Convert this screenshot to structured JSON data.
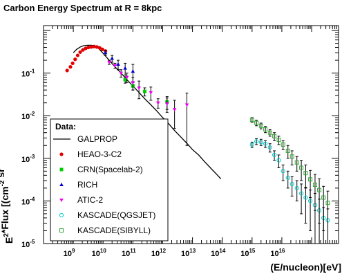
{
  "chart_data": {
    "type": "scatter",
    "title": "Carbon Energy Spectrum at R = 8kpc",
    "xlabel": "(E/nucleon)[eV]",
    "ylabel": "E^2*Flux [(cm^-2 sr^-1 s^-1 (MeV/nucleon)]",
    "xscale": "log",
    "yscale": "log",
    "xlim": [
      100000000,
      800000000000000000
    ],
    "ylim": [
      1e-05,
      1.3
    ],
    "x_ticks": [
      {
        "base": "10",
        "exp": "9",
        "value": 1000000000
      },
      {
        "base": "10",
        "exp": "10",
        "value": 10000000000
      },
      {
        "base": "10",
        "exp": "11",
        "value": 100000000000
      },
      {
        "base": "10",
        "exp": "12",
        "value": 1000000000000
      },
      {
        "base": "10",
        "exp": "13",
        "value": 10000000000000
      },
      {
        "base": "10",
        "exp": "14",
        "value": 100000000000000
      },
      {
        "base": "10",
        "exp": "15",
        "value": 1000000000000000
      },
      {
        "base": "10",
        "exp": "16",
        "value": 10000000000000000
      }
    ],
    "y_ticks": [
      {
        "base": "10",
        "exp": "-1",
        "value": 0.1
      },
      {
        "base": "10",
        "exp": "-2",
        "value": 0.01
      },
      {
        "base": "10",
        "exp": "-3",
        "value": 0.001
      },
      {
        "base": "10",
        "exp": "-4",
        "value": 0.0001
      },
      {
        "base": "10",
        "exp": "-5",
        "value": 1e-05
      }
    ],
    "legend": {
      "header": "Data:",
      "placement": "bottom-left"
    },
    "series": [
      {
        "name": "GALPROP",
        "style": "line",
        "color": "#000000",
        "points": [
          [
            1000000000.0,
            0.3
          ],
          [
            1300000000.0,
            0.36
          ],
          [
            1700000000.0,
            0.41
          ],
          [
            2200000000.0,
            0.44
          ],
          [
            3000000000.0,
            0.45
          ],
          [
            4000000000.0,
            0.45
          ],
          [
            5000000000.0,
            0.44
          ],
          [
            7000000000.0,
            0.38
          ],
          [
            10000000000.0,
            0.29
          ],
          [
            16000000000.0,
            0.2
          ],
          [
            25000000000.0,
            0.14
          ],
          [
            40000000000.0,
            0.1
          ],
          [
            63000000000.0,
            0.07
          ],
          [
            100000000000.0,
            0.05
          ],
          [
            160000000000.0,
            0.035
          ],
          [
            250000000000.0,
            0.025
          ],
          [
            400000000000.0,
            0.018
          ],
          [
            630000000000.0,
            0.013
          ],
          [
            1000000000000.0,
            0.009
          ],
          [
            1600000000000.0,
            0.0064
          ],
          [
            2500000000000.0,
            0.0045
          ],
          [
            4000000000000.0,
            0.0032
          ],
          [
            6300000000000.0,
            0.0023
          ],
          [
            10000000000000.0,
            0.0016
          ],
          [
            16000000000000.0,
            0.0012
          ],
          [
            25000000000000.0,
            0.00085
          ],
          [
            40000000000000.0,
            0.0006
          ],
          [
            63000000000000.0,
            0.00043
          ],
          [
            90000000000000.0,
            0.00033
          ]
        ]
      },
      {
        "name": "HEAO-3-C2",
        "style": "marker",
        "marker": "circle",
        "color": "#e00000",
        "points": [
          [
            620000000.0,
            0.115
          ],
          [
            800000000.0,
            0.14
          ],
          [
            950000000.0,
            0.17
          ],
          [
            1150000000.0,
            0.21
          ],
          [
            1400000000.0,
            0.26
          ],
          [
            1700000000.0,
            0.31
          ],
          [
            2100000000.0,
            0.35
          ],
          [
            2600000000.0,
            0.38
          ],
          [
            3200000000.0,
            0.4
          ],
          [
            4000000000.0,
            0.41
          ],
          [
            5000000000.0,
            0.42
          ],
          [
            6200000000.0,
            0.41
          ],
          [
            7700000000.0,
            0.39
          ],
          [
            9500000000.0,
            0.36
          ],
          [
            12000000000.0,
            0.33
          ]
        ]
      },
      {
        "name": "CRN(Spacelab-2)",
        "style": "marker",
        "marker": "square",
        "color": "#00cc00",
        "points": [
          [
            55000000000.0,
            0.07,
            0.012
          ],
          [
            100000000000.0,
            0.05,
            0.01
          ],
          [
            250000000000.0,
            0.037,
            0.008
          ],
          [
            1400000000000.0,
            0.021,
            0.007
          ]
        ]
      },
      {
        "name": "RICH",
        "style": "marker",
        "marker": "triangle-up",
        "color": "#0000cc",
        "points": [
          [
            12000000000.0,
            0.3,
            0.04
          ],
          [
            20000000000.0,
            0.22,
            0.04
          ],
          [
            32000000000.0,
            0.16,
            0.04
          ],
          [
            55000000000.0,
            0.13,
            0.04
          ],
          [
            100000000000.0,
            0.11,
            0.05
          ]
        ]
      },
      {
        "name": "ATIC-2",
        "style": "marker",
        "marker": "triangle-down",
        "color": "#ee00ee",
        "points": [
          [
            16000000000.0,
            0.18,
            0.02
          ],
          [
            25000000000.0,
            0.15,
            0.02
          ],
          [
            40000000000.0,
            0.1,
            0.02
          ],
          [
            63000000000.0,
            0.08,
            0.02
          ],
          [
            100000000000.0,
            0.06,
            0.02
          ],
          [
            160000000000.0,
            0.045,
            0.02
          ],
          [
            400000000000.0,
            0.035,
            0.012
          ],
          [
            700000000000.0,
            0.02,
            0.005
          ],
          [
            1400000000000.0,
            0.019,
            0.007
          ],
          [
            2500000000000.0,
            0.014,
            0.009
          ],
          [
            6500000000000.0,
            0.018,
            0.016
          ]
        ]
      },
      {
        "name": "KASCADE(QGSJET)",
        "style": "marker",
        "marker": "circle-open",
        "color": "#00cccc",
        "points": [
          [
            1000000000000000.0,
            0.0021,
            0.0003
          ],
          [
            1400000000000000.0,
            0.0025,
            0.0004
          ],
          [
            2000000000000000.0,
            0.0024,
            0.0004
          ],
          [
            2800000000000000.0,
            0.0022,
            0.0004
          ],
          [
            4000000000000000.0,
            0.0018,
            0.0004
          ],
          [
            5600000000000000.0,
            0.0012,
            0.0003
          ],
          [
            7900000000000000.0,
            0.0009,
            0.0003
          ],
          [
            1.1e+16,
            0.0005,
            0.0002
          ],
          [
            1.6e+16,
            0.00035,
            0.00015
          ],
          [
            2.2e+16,
            0.00025,
            0.00012
          ],
          [
            3.2e+16,
            0.0002,
            0.0001
          ],
          [
            4.5e+16,
            0.00015,
            0.0001
          ],
          [
            6.3e+16,
            0.00012,
            9e-05
          ],
          [
            9e+16,
            0.0001,
            8e-05
          ],
          [
            1.3e+17,
            8e-05,
            7e-05
          ],
          [
            1.8e+17,
            6e-05,
            5e-05
          ],
          [
            2.5e+17,
            4e-05,
            3e-05
          ],
          [
            3.5e+17,
            3.5e-05,
            3e-05
          ]
        ]
      },
      {
        "name": "KASCADE(SIBYLL)",
        "style": "marker",
        "marker": "square-open",
        "color": "#33aa33",
        "points": [
          [
            1000000000000000.0,
            0.008,
            0.001
          ],
          [
            1400000000000000.0,
            0.0068,
            0.001
          ],
          [
            2000000000000000.0,
            0.0058,
            0.0009
          ],
          [
            2800000000000000.0,
            0.0048,
            0.0008
          ],
          [
            4000000000000000.0,
            0.004,
            0.0007
          ],
          [
            5600000000000000.0,
            0.0033,
            0.0007
          ],
          [
            7900000000000000.0,
            0.0027,
            0.0006
          ],
          [
            1.1e+16,
            0.0021,
            0.0005
          ],
          [
            1.6e+16,
            0.0015,
            0.0005
          ],
          [
            2.2e+16,
            0.0011,
            0.0004
          ],
          [
            3.2e+16,
            0.0008,
            0.0003
          ],
          [
            4.5e+16,
            0.0006,
            0.0003
          ],
          [
            6.3e+16,
            0.00045,
            0.00025
          ],
          [
            9e+16,
            0.00032,
            0.0002
          ],
          [
            1.3e+17,
            0.00024,
            0.00018
          ],
          [
            1.8e+17,
            0.00018,
            0.00015
          ],
          [
            2.5e+17,
            0.00012,
            0.0001
          ],
          [
            3.5e+17,
            9e-05,
            8e-05
          ]
        ]
      }
    ]
  }
}
